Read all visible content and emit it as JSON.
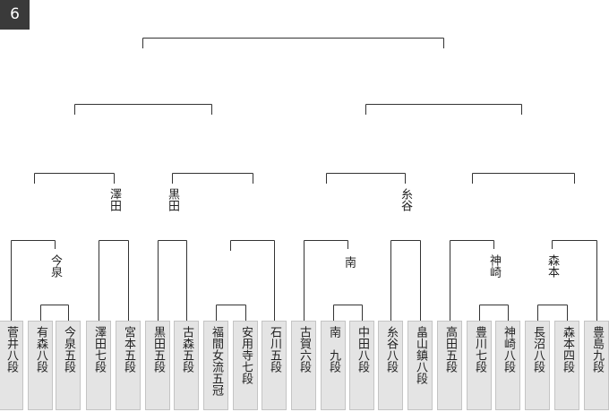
{
  "badge": "6",
  "players": [
    "菅井八段",
    "有森八段",
    "今泉五段",
    "澤田七段",
    "宮本五段",
    "黒田五段",
    "古森五段",
    "福間女流五冠",
    "安用寺七段",
    "石川五段",
    "古賀六段",
    "南　九段",
    "中田八段",
    "糸谷八段",
    "畠山鎮八段",
    "高田五段",
    "豊川七段",
    "神崎八段",
    "長沼八段",
    "森本四段",
    "豊島九段"
  ],
  "winners": [
    "今泉",
    "澤田",
    "黒田",
    "南",
    "糸谷",
    "神崎",
    "森本"
  ]
}
